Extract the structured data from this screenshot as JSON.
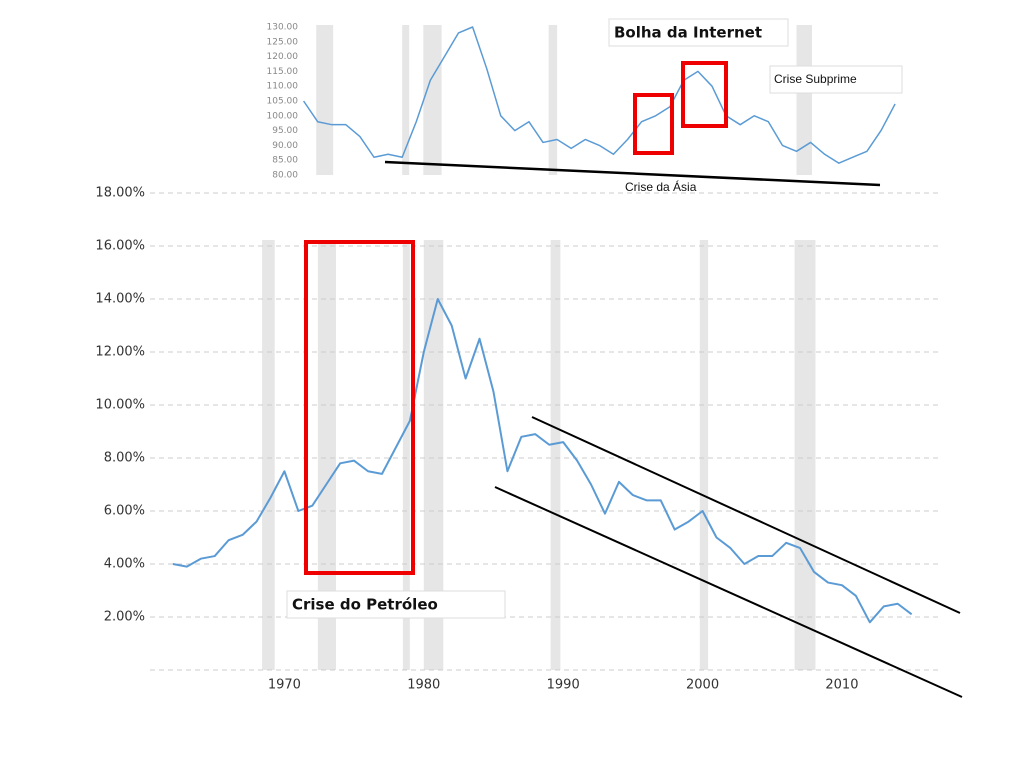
{
  "chart_data": [
    {
      "type": "line",
      "color": "#5b9bd5",
      "x": [
        1962,
        1963,
        1964,
        1965,
        1966,
        1967,
        1968,
        1969,
        1970,
        1971,
        1972,
        1973,
        1974,
        1975,
        1976,
        1977,
        1978,
        1979,
        1980,
        1981,
        1982,
        1983,
        1984,
        1985,
        1986,
        1987,
        1988,
        1989,
        1990,
        1991,
        1992,
        1993,
        1994,
        1995,
        1996,
        1997,
        1998,
        1999,
        2000,
        2001,
        2002,
        2003,
        2004,
        2005,
        2006,
        2007,
        2008,
        2009,
        2010,
        2011,
        2012,
        2013,
        2014,
        2015
      ],
      "values": [
        4.0,
        3.9,
        4.2,
        4.3,
        4.9,
        5.1,
        5.6,
        6.5,
        7.5,
        6.0,
        6.2,
        7.0,
        7.8,
        7.9,
        7.5,
        7.4,
        8.4,
        9.4,
        12.0,
        14.0,
        13.0,
        11.0,
        12.5,
        10.5,
        7.5,
        8.8,
        8.9,
        8.5,
        8.6,
        7.9,
        7.0,
        5.9,
        7.1,
        6.6,
        6.4,
        6.4,
        5.3,
        5.6,
        6.0,
        5.0,
        4.6,
        4.0,
        4.3,
        4.3,
        4.8,
        4.6,
        3.7,
        3.3,
        3.2,
        2.8,
        1.8,
        2.4,
        2.5,
        2.1
      ],
      "shaded_ranges": [
        [
          1968.4,
          1969.3
        ],
        [
          1972.4,
          1973.7
        ],
        [
          1978.5,
          1979.0
        ],
        [
          1980.0,
          1981.4
        ],
        [
          1989.1,
          1989.8
        ],
        [
          1999.8,
          2000.4
        ],
        [
          2006.6,
          2008.1
        ]
      ],
      "xlim": [
        1960.5,
        2015.6
      ],
      "xticks": [
        1970,
        1980,
        1990,
        2000,
        2010
      ],
      "ylim": [
        0,
        18
      ],
      "yticks": [
        {
          "value": 2,
          "label": "2.00%"
        },
        {
          "value": 4,
          "label": "4.00%"
        },
        {
          "value": 6,
          "label": "6.00%"
        },
        {
          "value": 8,
          "label": "8.00%"
        },
        {
          "value": 10,
          "label": "10.00%"
        },
        {
          "value": 12,
          "label": "12.00%"
        },
        {
          "value": 14,
          "label": "14.00%"
        },
        {
          "value": 16,
          "label": "16.00%"
        },
        {
          "value": 18,
          "label": "18.00%"
        }
      ],
      "grid": true,
      "annotations": [
        "Crise do Petróleo"
      ]
    },
    {
      "type": "line",
      "color": "#5b9bd5",
      "x": [
        1973,
        1974,
        1975,
        1976,
        1977,
        1978,
        1979,
        1980,
        1981,
        1982,
        1983,
        1984,
        1985,
        1986,
        1987,
        1988,
        1989,
        1990,
        1991,
        1992,
        1993,
        1994,
        1995,
        1996,
        1997,
        1998,
        1999,
        2000,
        2001,
        2002,
        2003,
        2004,
        2005,
        2006,
        2007,
        2008,
        2009,
        2010,
        2011,
        2012,
        2013,
        2014,
        2015
      ],
      "values": [
        105,
        98,
        97,
        97,
        93,
        86,
        87,
        86,
        98,
        112,
        120,
        128,
        130,
        116,
        100,
        95,
        98,
        91,
        92,
        89,
        92,
        90,
        87,
        92,
        98,
        100,
        103,
        112,
        115,
        110,
        100,
        97,
        100,
        98,
        90,
        88,
        91,
        87,
        84,
        86,
        88,
        95,
        104
      ],
      "shaded_ranges": [
        [
          1973.9,
          1975.1
        ],
        [
          1980.0,
          1980.5
        ],
        [
          1981.5,
          1982.8
        ],
        [
          1990.4,
          1991.0
        ],
        [
          2008.0,
          2009.1
        ]
      ],
      "xlim": [
        1973.1,
        2016.2
      ],
      "ylim": [
        80,
        130
      ],
      "yticks": [
        {
          "value": 80,
          "label": "80.00"
        },
        {
          "value": 85,
          "label": "85.00"
        },
        {
          "value": 90,
          "label": "90.00"
        },
        {
          "value": 95,
          "label": "95.00"
        },
        {
          "value": 100,
          "label": "100.00"
        },
        {
          "value": 105,
          "label": "105.00"
        },
        {
          "value": 110,
          "label": "110.00"
        },
        {
          "value": 115,
          "label": "115.00"
        },
        {
          "value": 120,
          "label": "120.00"
        },
        {
          "value": 125,
          "label": "125.00"
        },
        {
          "value": 130,
          "label": "130.00"
        }
      ],
      "annotations": [
        "Bolha da Internet",
        "Crise Subprime",
        "Crise da Ásia"
      ]
    }
  ]
}
